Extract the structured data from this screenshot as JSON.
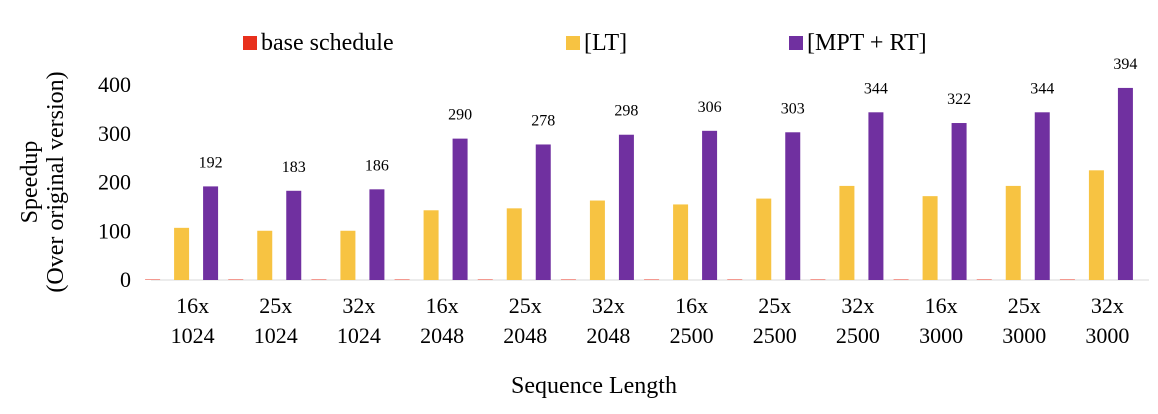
{
  "chart_data": {
    "type": "bar",
    "categories": [
      [
        "16x",
        "1024"
      ],
      [
        "25x",
        "1024"
      ],
      [
        "32x",
        "1024"
      ],
      [
        "16x",
        "2048"
      ],
      [
        "25x",
        "2048"
      ],
      [
        "32x",
        "2048"
      ],
      [
        "16x",
        "2500"
      ],
      [
        "25x",
        "2500"
      ],
      [
        "32x",
        "2500"
      ],
      [
        "16x",
        "3000"
      ],
      [
        "25x",
        "3000"
      ],
      [
        "32x",
        "3000"
      ]
    ],
    "series": [
      {
        "name": "base schedule",
        "color": "#e8301c",
        "values": [
          1,
          1,
          1,
          1,
          1,
          1,
          1,
          1,
          1,
          1,
          1,
          1
        ],
        "labels": [
          null,
          null,
          null,
          null,
          null,
          null,
          null,
          null,
          null,
          null,
          null,
          null
        ]
      },
      {
        "name": "[LT]",
        "color": "#f7c342",
        "values": [
          107,
          101,
          101,
          143,
          147,
          163,
          155,
          167,
          193,
          172,
          193,
          225
        ],
        "labels": [
          null,
          null,
          null,
          null,
          null,
          null,
          null,
          null,
          null,
          null,
          null,
          null
        ]
      },
      {
        "name": "[MPT + RT]",
        "color": "#7030a0",
        "values": [
          192,
          183,
          186,
          290,
          278,
          298,
          306,
          303,
          344,
          322,
          344,
          394
        ],
        "labels": [
          "192",
          "183",
          "186",
          "290",
          "278",
          "298",
          "306",
          "303",
          "344",
          "322",
          "344",
          "394"
        ]
      }
    ],
    "xlabel": "Sequence Length",
    "ylabel_lines": [
      "Speedup",
      "(Over original version)"
    ],
    "ylim": [
      0,
      400
    ],
    "yticks": [
      0,
      100,
      200,
      300,
      400
    ],
    "grid": false,
    "legend_position": "top"
  }
}
